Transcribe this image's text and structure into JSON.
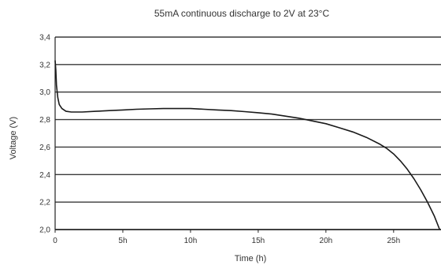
{
  "chart_data": {
    "type": "line",
    "title": "55mA continuous discharge to 2V at 23°C",
    "xlabel": "Time (h)",
    "ylabel": "Voltage (V)",
    "xlim": [
      0,
      28.5
    ],
    "ylim": [
      2.0,
      3.4
    ],
    "x_ticks": [
      {
        "value": 0,
        "label": "0"
      },
      {
        "value": 5,
        "label": "5h"
      },
      {
        "value": 10,
        "label": "10h"
      },
      {
        "value": 15,
        "label": "15h"
      },
      {
        "value": 20,
        "label": "20h"
      },
      {
        "value": 25,
        "label": "25h"
      }
    ],
    "y_ticks": [
      {
        "value": 2.0,
        "label": "2,0"
      },
      {
        "value": 2.2,
        "label": "2,2"
      },
      {
        "value": 2.4,
        "label": "2,4"
      },
      {
        "value": 2.6,
        "label": "2,6"
      },
      {
        "value": 2.8,
        "label": "2,8"
      },
      {
        "value": 3.0,
        "label": "3,0"
      },
      {
        "value": 3.2,
        "label": "3,2"
      },
      {
        "value": 3.4,
        "label": "3,4"
      }
    ],
    "grid": "horizontal",
    "series": [
      {
        "x": [
          0,
          0.05,
          0.1,
          0.2,
          0.3,
          0.5,
          0.8,
          1.2,
          2,
          3,
          4,
          5,
          6,
          7,
          8,
          9,
          10,
          11,
          12,
          13,
          14,
          15,
          16,
          17,
          18,
          19,
          20,
          21,
          22,
          23,
          24,
          24.5,
          25,
          25.5,
          26,
          26.5,
          27,
          27.5,
          28,
          28.4
        ],
        "y": [
          3.23,
          3.16,
          3.05,
          2.96,
          2.91,
          2.88,
          2.86,
          2.855,
          2.855,
          2.86,
          2.865,
          2.87,
          2.875,
          2.878,
          2.88,
          2.88,
          2.88,
          2.875,
          2.87,
          2.865,
          2.858,
          2.85,
          2.84,
          2.825,
          2.81,
          2.79,
          2.77,
          2.74,
          2.71,
          2.67,
          2.62,
          2.59,
          2.55,
          2.5,
          2.44,
          2.37,
          2.29,
          2.2,
          2.1,
          2.0
        ]
      }
    ],
    "colors": {
      "line": "#1a1a1a",
      "grid": "#3a3a3a",
      "axis": "#222222",
      "text": "#333333"
    }
  }
}
